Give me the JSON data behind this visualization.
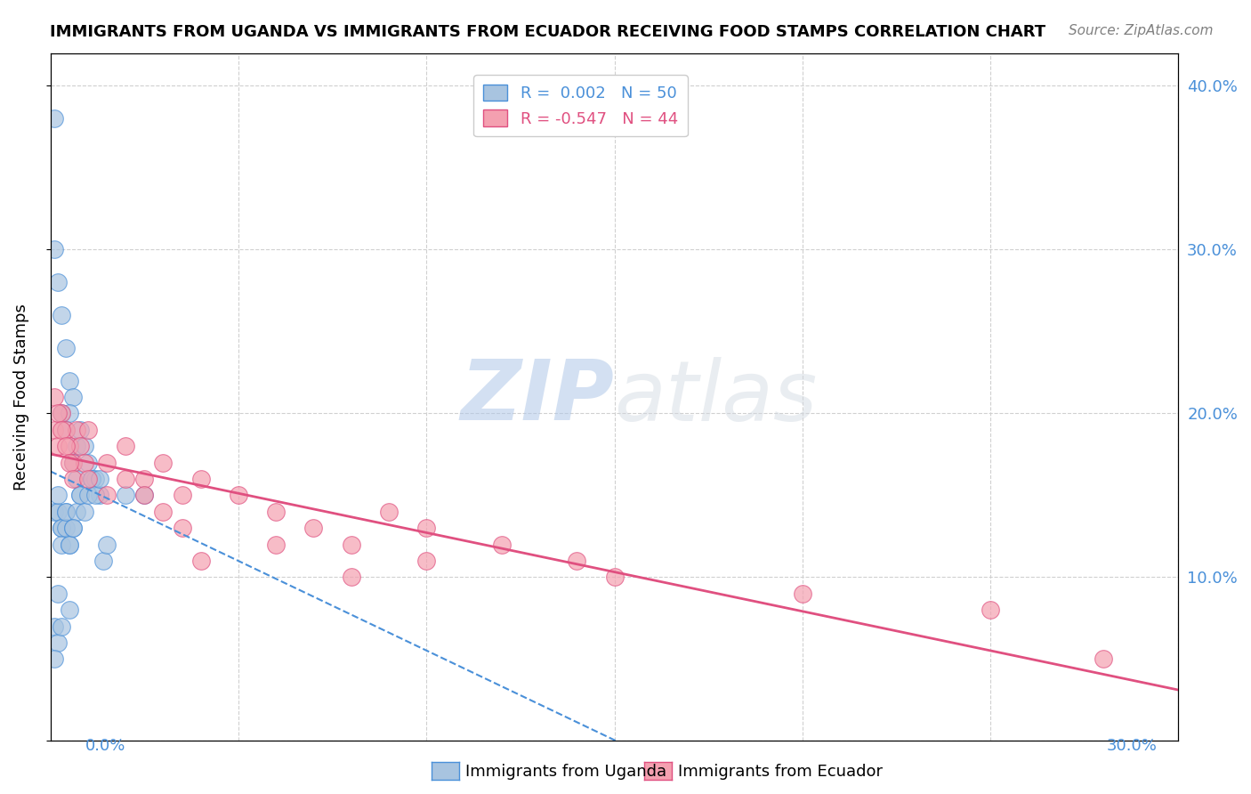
{
  "title": "IMMIGRANTS FROM UGANDA VS IMMIGRANTS FROM ECUADOR RECEIVING FOOD STAMPS CORRELATION CHART",
  "source": "Source: ZipAtlas.com",
  "ylabel": "Receiving Food Stamps",
  "right_yticks": [
    "40.0%",
    "30.0%",
    "20.0%",
    "10.0%"
  ],
  "right_ytick_vals": [
    0.4,
    0.3,
    0.2,
    0.1
  ],
  "watermark_zip": "ZIP",
  "watermark_atlas": "atlas",
  "label_uganda": "Immigrants from Uganda",
  "label_ecuador": "Immigrants from Ecuador",
  "color_uganda": "#a8c4e0",
  "color_ecuador": "#f4a0b0",
  "color_line_uganda": "#4a90d9",
  "color_line_ecuador": "#e05080",
  "uganda_x": [
    0.001,
    0.002,
    0.001,
    0.003,
    0.004,
    0.005,
    0.003,
    0.004,
    0.006,
    0.005,
    0.007,
    0.006,
    0.008,
    0.007,
    0.009,
    0.008,
    0.01,
    0.011,
    0.012,
    0.013,
    0.001,
    0.002,
    0.003,
    0.002,
    0.003,
    0.004,
    0.003,
    0.004,
    0.005,
    0.004,
    0.006,
    0.005,
    0.007,
    0.006,
    0.008,
    0.009,
    0.01,
    0.011,
    0.012,
    0.013,
    0.014,
    0.015,
    0.02,
    0.025,
    0.001,
    0.002,
    0.001,
    0.003,
    0.005,
    0.002
  ],
  "uganda_y": [
    0.38,
    0.28,
    0.3,
    0.26,
    0.24,
    0.22,
    0.2,
    0.19,
    0.21,
    0.2,
    0.18,
    0.17,
    0.19,
    0.16,
    0.18,
    0.15,
    0.17,
    0.16,
    0.16,
    0.15,
    0.14,
    0.14,
    0.13,
    0.15,
    0.13,
    0.14,
    0.12,
    0.13,
    0.12,
    0.14,
    0.13,
    0.12,
    0.14,
    0.13,
    0.15,
    0.14,
    0.15,
    0.16,
    0.15,
    0.16,
    0.11,
    0.12,
    0.15,
    0.15,
    0.07,
    0.06,
    0.05,
    0.07,
    0.08,
    0.09
  ],
  "ecuador_x": [
    0.001,
    0.002,
    0.003,
    0.004,
    0.005,
    0.006,
    0.007,
    0.008,
    0.009,
    0.01,
    0.015,
    0.02,
    0.025,
    0.03,
    0.035,
    0.04,
    0.05,
    0.06,
    0.07,
    0.08,
    0.09,
    0.1,
    0.12,
    0.14,
    0.001,
    0.002,
    0.003,
    0.004,
    0.005,
    0.006,
    0.01,
    0.015,
    0.02,
    0.025,
    0.03,
    0.035,
    0.04,
    0.06,
    0.08,
    0.1,
    0.15,
    0.2,
    0.25,
    0.28
  ],
  "ecuador_y": [
    0.19,
    0.18,
    0.2,
    0.19,
    0.18,
    0.17,
    0.19,
    0.18,
    0.17,
    0.19,
    0.17,
    0.18,
    0.16,
    0.17,
    0.15,
    0.16,
    0.15,
    0.14,
    0.13,
    0.12,
    0.14,
    0.13,
    0.12,
    0.11,
    0.21,
    0.2,
    0.19,
    0.18,
    0.17,
    0.16,
    0.16,
    0.15,
    0.16,
    0.15,
    0.14,
    0.13,
    0.11,
    0.12,
    0.1,
    0.11,
    0.1,
    0.09,
    0.08,
    0.05
  ],
  "xlim": [
    0.0,
    0.3
  ],
  "ylim": [
    0.0,
    0.42
  ],
  "background_color": "#ffffff",
  "grid_color": "#d0d0d0"
}
